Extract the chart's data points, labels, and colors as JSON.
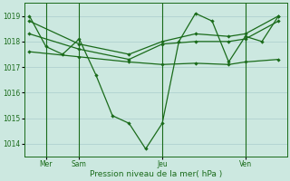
{
  "bg_color": "#cce8e0",
  "grid_color": "#aacccc",
  "line_color": "#1a6b1a",
  "ylim": [
    1013.5,
    1019.5
  ],
  "yticks": [
    1014,
    1015,
    1016,
    1017,
    1018,
    1019
  ],
  "xlabel": "Pression niveau de la mer( hPa )",
  "day_labels": [
    "Mer",
    "Sam",
    "Jeu",
    "Ven"
  ],
  "day_positions": [
    1,
    3,
    8,
    13
  ],
  "vlines": [
    1,
    3,
    8,
    13
  ],
  "series1": {
    "x": [
      0,
      1,
      2,
      3,
      4,
      5,
      6,
      7,
      8,
      9,
      10,
      11,
      12,
      13,
      14,
      15
    ],
    "y": [
      1019.0,
      1017.8,
      1017.5,
      1018.1,
      1016.7,
      1015.1,
      1014.8,
      1013.8,
      1014.8,
      1018.0,
      1019.1,
      1018.8,
      1017.2,
      1018.2,
      1018.0,
      1019.0
    ]
  },
  "series2": {
    "x": [
      0,
      3,
      6,
      8,
      10,
      12,
      13,
      15
    ],
    "y": [
      1018.8,
      1017.9,
      1017.5,
      1018.0,
      1018.3,
      1018.2,
      1018.3,
      1019.0
    ]
  },
  "series3": {
    "x": [
      0,
      3,
      6,
      8,
      10,
      12,
      13,
      15
    ],
    "y": [
      1018.3,
      1017.7,
      1017.3,
      1017.9,
      1018.0,
      1018.0,
      1018.1,
      1018.8
    ]
  },
  "series4": {
    "x": [
      0,
      3,
      6,
      8,
      10,
      12,
      13,
      15
    ],
    "y": [
      1017.6,
      1017.4,
      1017.2,
      1017.1,
      1017.15,
      1017.1,
      1017.2,
      1017.3
    ]
  }
}
